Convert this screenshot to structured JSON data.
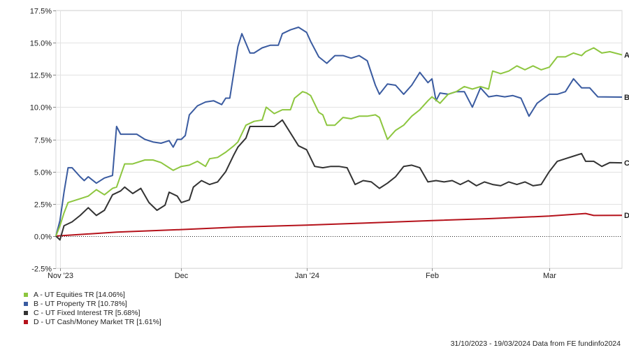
{
  "chart_data": {
    "type": "line",
    "title": "",
    "xlabel": "",
    "ylabel": "",
    "ylim": [
      -2.5,
      17.5
    ],
    "y_ticks": [
      -2.5,
      0,
      2.5,
      5,
      7.5,
      10,
      12.5,
      15,
      17.5
    ],
    "y_tick_labels": [
      "-2.5%",
      "0.0%",
      "2.5%",
      "5.0%",
      "7.5%",
      "10.0%",
      "12.5%",
      "15.0%",
      "17.5%"
    ],
    "x_range": [
      "2023-10-31",
      "2024-03-19"
    ],
    "x_ticks": [
      {
        "date": "2023-11-01",
        "label": "Nov '23"
      },
      {
        "date": "2023-12-01",
        "label": "Dec"
      },
      {
        "date": "2024-01-01",
        "label": "Jan '24"
      },
      {
        "date": "2024-02-01",
        "label": "Feb"
      },
      {
        "date": "2024-03-01",
        "label": "Mar"
      }
    ],
    "grid": true,
    "legend_position": "bottom-left",
    "zero_line": "dotted",
    "series": [
      {
        "id": "A",
        "name": "A - UT Equities TR [14.06%]",
        "color": "#8dc63f",
        "points": [
          [
            "2023-10-31",
            0.0
          ],
          [
            "2023-11-01",
            0.8
          ],
          [
            "2023-11-02",
            1.8
          ],
          [
            "2023-11-03",
            2.6
          ],
          [
            "2023-11-06",
            2.9
          ],
          [
            "2023-11-08",
            3.1
          ],
          [
            "2023-11-10",
            3.6
          ],
          [
            "2023-11-12",
            3.2
          ],
          [
            "2023-11-14",
            3.7
          ],
          [
            "2023-11-15",
            3.8
          ],
          [
            "2023-11-17",
            5.6
          ],
          [
            "2023-11-19",
            5.6
          ],
          [
            "2023-11-22",
            5.9
          ],
          [
            "2023-11-24",
            5.9
          ],
          [
            "2023-11-26",
            5.7
          ],
          [
            "2023-11-28",
            5.3
          ],
          [
            "2023-11-29",
            5.1
          ],
          [
            "2023-12-01",
            5.4
          ],
          [
            "2023-12-03",
            5.5
          ],
          [
            "2023-12-05",
            5.8
          ],
          [
            "2023-12-07",
            5.4
          ],
          [
            "2023-12-08",
            6.0
          ],
          [
            "2023-12-10",
            6.1
          ],
          [
            "2023-12-12",
            6.5
          ],
          [
            "2023-12-14",
            7.0
          ],
          [
            "2023-12-15",
            7.3
          ],
          [
            "2023-12-17",
            8.6
          ],
          [
            "2023-12-19",
            8.9
          ],
          [
            "2023-12-21",
            9.0
          ],
          [
            "2023-12-22",
            10.0
          ],
          [
            "2023-12-24",
            9.5
          ],
          [
            "2023-12-26",
            9.8
          ],
          [
            "2023-12-28",
            9.8
          ],
          [
            "2023-12-29",
            10.7
          ],
          [
            "2023-12-31",
            11.2
          ],
          [
            "2024-01-01",
            11.1
          ],
          [
            "2024-01-02",
            10.9
          ],
          [
            "2024-01-04",
            9.6
          ],
          [
            "2024-01-05",
            9.4
          ],
          [
            "2024-01-06",
            8.6
          ],
          [
            "2024-01-08",
            8.6
          ],
          [
            "2024-01-10",
            9.2
          ],
          [
            "2024-01-12",
            9.1
          ],
          [
            "2024-01-14",
            9.3
          ],
          [
            "2024-01-16",
            9.3
          ],
          [
            "2024-01-18",
            9.4
          ],
          [
            "2024-01-19",
            9.2
          ],
          [
            "2024-01-21",
            7.5
          ],
          [
            "2024-01-23",
            8.2
          ],
          [
            "2024-01-25",
            8.6
          ],
          [
            "2024-01-27",
            9.3
          ],
          [
            "2024-01-29",
            9.8
          ],
          [
            "2024-01-31",
            10.5
          ],
          [
            "2024-02-01",
            10.8
          ],
          [
            "2024-02-03",
            10.3
          ],
          [
            "2024-02-05",
            11.0
          ],
          [
            "2024-02-07",
            11.2
          ],
          [
            "2024-02-09",
            11.6
          ],
          [
            "2024-02-11",
            11.4
          ],
          [
            "2024-02-13",
            11.6
          ],
          [
            "2024-02-15",
            11.4
          ],
          [
            "2024-02-16",
            12.8
          ],
          [
            "2024-02-18",
            12.6
          ],
          [
            "2024-02-20",
            12.8
          ],
          [
            "2024-02-22",
            13.2
          ],
          [
            "2024-02-24",
            12.9
          ],
          [
            "2024-02-26",
            13.2
          ],
          [
            "2024-02-28",
            12.9
          ],
          [
            "2024-03-01",
            13.1
          ],
          [
            "2024-03-03",
            13.9
          ],
          [
            "2024-03-05",
            13.9
          ],
          [
            "2024-03-07",
            14.2
          ],
          [
            "2024-03-09",
            14.0
          ],
          [
            "2024-03-10",
            14.3
          ],
          [
            "2024-03-12",
            14.6
          ],
          [
            "2024-03-14",
            14.2
          ],
          [
            "2024-03-16",
            14.3
          ],
          [
            "2024-03-19",
            14.06
          ]
        ]
      },
      {
        "id": "B",
        "name": "B - UT Property TR [10.78%]",
        "color": "#3a5ba0",
        "points": [
          [
            "2023-10-31",
            0.0
          ],
          [
            "2023-11-01",
            1.2
          ],
          [
            "2023-11-02",
            3.4
          ],
          [
            "2023-11-03",
            5.3
          ],
          [
            "2023-11-04",
            5.3
          ],
          [
            "2023-11-06",
            4.6
          ],
          [
            "2023-11-07",
            4.3
          ],
          [
            "2023-11-08",
            4.6
          ],
          [
            "2023-11-10",
            4.1
          ],
          [
            "2023-11-12",
            4.5
          ],
          [
            "2023-11-14",
            4.7
          ],
          [
            "2023-11-15",
            8.5
          ],
          [
            "2023-11-16",
            7.9
          ],
          [
            "2023-11-18",
            7.9
          ],
          [
            "2023-11-20",
            7.9
          ],
          [
            "2023-11-22",
            7.5
          ],
          [
            "2023-11-24",
            7.3
          ],
          [
            "2023-11-26",
            7.2
          ],
          [
            "2023-11-28",
            7.4
          ],
          [
            "2023-11-29",
            6.9
          ],
          [
            "2023-11-30",
            7.5
          ],
          [
            "2023-12-01",
            7.5
          ],
          [
            "2023-12-02",
            7.8
          ],
          [
            "2023-12-03",
            9.4
          ],
          [
            "2023-12-05",
            10.1
          ],
          [
            "2023-12-07",
            10.4
          ],
          [
            "2023-12-09",
            10.5
          ],
          [
            "2023-12-11",
            10.2
          ],
          [
            "2023-12-12",
            10.7
          ],
          [
            "2023-12-13",
            10.7
          ],
          [
            "2023-12-15",
            14.7
          ],
          [
            "2023-12-16",
            15.7
          ],
          [
            "2023-12-18",
            14.2
          ],
          [
            "2023-12-19",
            14.2
          ],
          [
            "2023-12-21",
            14.6
          ],
          [
            "2023-12-23",
            14.8
          ],
          [
            "2023-12-25",
            14.8
          ],
          [
            "2023-12-26",
            15.7
          ],
          [
            "2023-12-28",
            16.0
          ],
          [
            "2023-12-30",
            16.2
          ],
          [
            "2024-01-01",
            15.8
          ],
          [
            "2024-01-02",
            15.1
          ],
          [
            "2024-01-04",
            13.9
          ],
          [
            "2024-01-06",
            13.4
          ],
          [
            "2024-01-08",
            14.0
          ],
          [
            "2024-01-10",
            14.0
          ],
          [
            "2024-01-12",
            13.8
          ],
          [
            "2024-01-14",
            14.0
          ],
          [
            "2024-01-16",
            13.6
          ],
          [
            "2024-01-18",
            11.7
          ],
          [
            "2024-01-19",
            11.0
          ],
          [
            "2024-01-21",
            11.8
          ],
          [
            "2024-01-23",
            11.7
          ],
          [
            "2024-01-25",
            11.0
          ],
          [
            "2024-01-27",
            11.7
          ],
          [
            "2024-01-29",
            12.7
          ],
          [
            "2024-01-31",
            11.9
          ],
          [
            "2024-02-01",
            12.2
          ],
          [
            "2024-02-02",
            10.5
          ],
          [
            "2024-02-03",
            11.1
          ],
          [
            "2024-02-05",
            11.0
          ],
          [
            "2024-02-07",
            11.2
          ],
          [
            "2024-02-09",
            11.2
          ],
          [
            "2024-02-11",
            10.0
          ],
          [
            "2024-02-13",
            11.5
          ],
          [
            "2024-02-15",
            10.8
          ],
          [
            "2024-02-17",
            10.9
          ],
          [
            "2024-02-19",
            10.8
          ],
          [
            "2024-02-21",
            10.9
          ],
          [
            "2024-02-23",
            10.7
          ],
          [
            "2024-02-25",
            9.3
          ],
          [
            "2024-02-27",
            10.3
          ],
          [
            "2024-03-01",
            11.0
          ],
          [
            "2024-03-03",
            11.0
          ],
          [
            "2024-03-05",
            11.2
          ],
          [
            "2024-03-07",
            12.2
          ],
          [
            "2024-03-09",
            11.5
          ],
          [
            "2024-03-11",
            11.5
          ],
          [
            "2024-03-13",
            10.8
          ],
          [
            "2024-03-19",
            10.78
          ]
        ]
      },
      {
        "id": "C",
        "name": "C - UT Fixed Interest TR [5.68%]",
        "color": "#333333",
        "points": [
          [
            "2023-10-31",
            0.0
          ],
          [
            "2023-11-01",
            -0.3
          ],
          [
            "2023-11-02",
            0.8
          ],
          [
            "2023-11-04",
            1.1
          ],
          [
            "2023-11-06",
            1.6
          ],
          [
            "2023-11-08",
            2.2
          ],
          [
            "2023-11-10",
            1.6
          ],
          [
            "2023-11-12",
            2.0
          ],
          [
            "2023-11-14",
            3.2
          ],
          [
            "2023-11-16",
            3.5
          ],
          [
            "2023-11-17",
            3.8
          ],
          [
            "2023-11-19",
            3.3
          ],
          [
            "2023-11-21",
            3.7
          ],
          [
            "2023-11-23",
            2.6
          ],
          [
            "2023-11-25",
            2.0
          ],
          [
            "2023-11-27",
            2.4
          ],
          [
            "2023-11-28",
            3.4
          ],
          [
            "2023-11-30",
            3.1
          ],
          [
            "2023-12-01",
            2.6
          ],
          [
            "2023-12-03",
            2.8
          ],
          [
            "2023-12-04",
            3.8
          ],
          [
            "2023-12-06",
            4.3
          ],
          [
            "2023-12-08",
            4.0
          ],
          [
            "2023-12-10",
            4.2
          ],
          [
            "2023-12-12",
            5.0
          ],
          [
            "2023-12-14",
            6.3
          ],
          [
            "2023-12-15",
            6.9
          ],
          [
            "2023-12-17",
            7.6
          ],
          [
            "2023-12-18",
            8.5
          ],
          [
            "2023-12-20",
            8.5
          ],
          [
            "2023-12-22",
            8.5
          ],
          [
            "2023-12-24",
            8.5
          ],
          [
            "2023-12-26",
            9.0
          ],
          [
            "2023-12-28",
            8.0
          ],
          [
            "2023-12-30",
            7.0
          ],
          [
            "2024-01-01",
            6.7
          ],
          [
            "2024-01-03",
            5.4
          ],
          [
            "2024-01-05",
            5.3
          ],
          [
            "2024-01-07",
            5.4
          ],
          [
            "2024-01-09",
            5.4
          ],
          [
            "2024-01-11",
            5.3
          ],
          [
            "2024-01-13",
            4.0
          ],
          [
            "2024-01-15",
            4.3
          ],
          [
            "2024-01-17",
            4.2
          ],
          [
            "2024-01-19",
            3.7
          ],
          [
            "2024-01-21",
            4.1
          ],
          [
            "2024-01-23",
            4.6
          ],
          [
            "2024-01-25",
            5.4
          ],
          [
            "2024-01-27",
            5.5
          ],
          [
            "2024-01-29",
            5.3
          ],
          [
            "2024-01-31",
            4.2
          ],
          [
            "2024-02-02",
            4.3
          ],
          [
            "2024-02-04",
            4.2
          ],
          [
            "2024-02-06",
            4.3
          ],
          [
            "2024-02-08",
            4.0
          ],
          [
            "2024-02-10",
            4.3
          ],
          [
            "2024-02-12",
            3.9
          ],
          [
            "2024-02-14",
            4.2
          ],
          [
            "2024-02-16",
            4.0
          ],
          [
            "2024-02-18",
            3.9
          ],
          [
            "2024-02-20",
            4.2
          ],
          [
            "2024-02-22",
            4.0
          ],
          [
            "2024-02-24",
            4.2
          ],
          [
            "2024-02-26",
            3.9
          ],
          [
            "2024-02-28",
            4.0
          ],
          [
            "2024-03-01",
            5.0
          ],
          [
            "2024-03-03",
            5.8
          ],
          [
            "2024-03-05",
            6.0
          ],
          [
            "2024-03-07",
            6.2
          ],
          [
            "2024-03-09",
            6.4
          ],
          [
            "2024-03-10",
            5.8
          ],
          [
            "2024-03-12",
            5.8
          ],
          [
            "2024-03-14",
            5.4
          ],
          [
            "2024-03-16",
            5.7
          ],
          [
            "2024-03-19",
            5.68
          ]
        ]
      },
      {
        "id": "D",
        "name": "D - UT Cash/Money Market TR [1.61%]",
        "color": "#b5121b",
        "points": [
          [
            "2023-10-31",
            0.0
          ],
          [
            "2023-11-15",
            0.3
          ],
          [
            "2023-12-01",
            0.5
          ],
          [
            "2023-12-15",
            0.7
          ],
          [
            "2024-01-01",
            0.85
          ],
          [
            "2024-01-15",
            1.0
          ],
          [
            "2024-02-01",
            1.2
          ],
          [
            "2024-02-15",
            1.35
          ],
          [
            "2024-03-01",
            1.55
          ],
          [
            "2024-03-10",
            1.75
          ],
          [
            "2024-03-12",
            1.6
          ],
          [
            "2024-03-19",
            1.61
          ]
        ]
      }
    ],
    "footer": "31/10/2023 - 19/03/2024 Data from FE fundinfo2024"
  }
}
